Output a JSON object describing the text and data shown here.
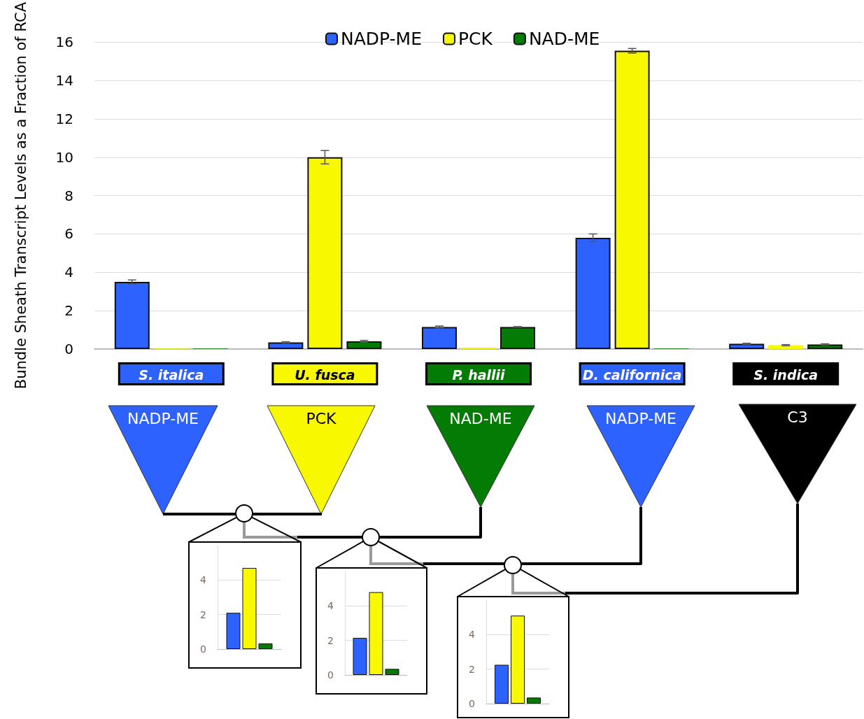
{
  "chart_data": [
    {
      "type": "bar",
      "ylabel": "Bundle Sheath Transcript Levels as a Fraction of RCA",
      "categories": [
        "S. italica",
        "U. fusca",
        "P. hallii",
        "D. californica",
        "S. indica"
      ],
      "series": [
        {
          "name": "NADP-ME",
          "color": "#2e62ff",
          "values": [
            3.5,
            0.35,
            1.15,
            5.8,
            0.27
          ],
          "errors": [
            0.1,
            0.03,
            0.05,
            0.2,
            0.03
          ]
        },
        {
          "name": "PCK",
          "color": "#f8f800",
          "values": [
            0.03,
            10.0,
            0.07,
            15.55,
            0.2
          ],
          "errors": [
            null,
            0.35,
            null,
            0.12,
            0.03
          ]
        },
        {
          "name": "NAD-ME",
          "color": "#047b04",
          "values": [
            0.03,
            0.4,
            1.15,
            0.03,
            0.24
          ],
          "errors": [
            null,
            0.05,
            0.02,
            null,
            0.03
          ]
        }
      ],
      "ylim": [
        0,
        16
      ],
      "yticks": [
        0,
        2,
        4,
        6,
        8,
        10,
        12,
        14,
        16
      ],
      "grid": "y",
      "legend": "top",
      "annotations": [
        "NADP-ME",
        "PCK",
        "NAD-ME",
        "NADP-ME",
        "C3"
      ]
    },
    {
      "type": "bar",
      "categories": [
        null
      ],
      "series": [
        {
          "color": "#2e62ff",
          "values": [
            2.1
          ]
        },
        {
          "color": "#f8f800",
          "values": [
            4.7
          ]
        },
        {
          "color": "#047b04",
          "values": [
            0.33
          ]
        }
      ],
      "ylim": [
        0,
        6
      ],
      "yticks": [
        0,
        2,
        4
      ],
      "grid": "y"
    },
    {
      "type": "bar",
      "categories": [
        null
      ],
      "series": [
        {
          "color": "#2e62ff",
          "values": [
            2.15
          ]
        },
        {
          "color": "#f8f800",
          "values": [
            4.8
          ]
        },
        {
          "color": "#047b04",
          "values": [
            0.35
          ]
        }
      ],
      "ylim": [
        0,
        6
      ],
      "yticks": [
        0,
        2,
        4
      ],
      "grid": "y"
    },
    {
      "type": "bar",
      "categories": [
        null
      ],
      "series": [
        {
          "color": "#2e62ff",
          "values": [
            2.25
          ]
        },
        {
          "color": "#f8f800",
          "values": [
            5.1
          ]
        },
        {
          "color": "#047b04",
          "values": [
            0.35
          ]
        }
      ],
      "ylim": [
        0,
        6
      ],
      "yticks": [
        0,
        2,
        4
      ],
      "grid": "y"
    }
  ]
}
